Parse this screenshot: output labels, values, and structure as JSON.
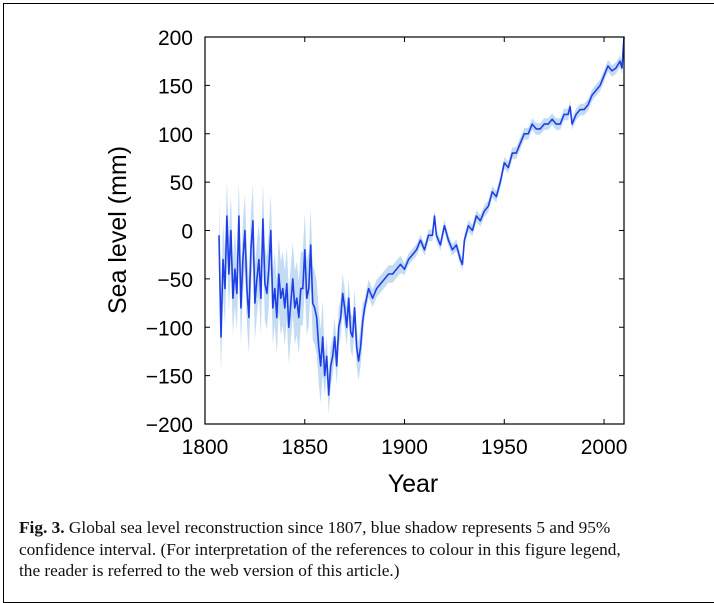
{
  "figure": {
    "caption_label": "Fig. 3.",
    "caption_line1": " Global sea level reconstruction since 1807, blue shadow represents 5 and 95%",
    "caption_line2": "confidence interval. (For interpretation of the references to colour in this figure legend,",
    "caption_line3": "the reader is referred to the web version of this article.)"
  },
  "chart_data": {
    "type": "line",
    "xlabel": "Year",
    "ylabel": "Sea level (mm)",
    "xlim": [
      1800,
      2010
    ],
    "ylim": [
      -200,
      200
    ],
    "x_ticks": [
      1800,
      1850,
      1900,
      1950,
      2000
    ],
    "y_ticks": [
      200,
      150,
      100,
      50,
      0,
      -50,
      -100,
      -150,
      -200
    ],
    "y_tick_labels": [
      "200",
      "150",
      "100",
      "50",
      "0",
      "−50",
      "−100",
      "−150",
      "−200"
    ],
    "grid": false,
    "colors": {
      "line": "#1f3fe6",
      "band": "#b9d6f2"
    },
    "series": [
      {
        "x": [
          1807,
          1808,
          1809,
          1810,
          1811,
          1812,
          1813,
          1814,
          1815,
          1816,
          1817,
          1818,
          1819,
          1820,
          1821,
          1822,
          1823,
          1824,
          1825,
          1826,
          1827,
          1828,
          1829,
          1830,
          1831,
          1832,
          1833,
          1834,
          1835,
          1836,
          1837,
          1838,
          1839,
          1840,
          1841,
          1842,
          1843,
          1844,
          1845,
          1846,
          1847,
          1848,
          1849,
          1850,
          1851,
          1852,
          1853,
          1854,
          1855,
          1856,
          1857,
          1858,
          1859,
          1860,
          1861,
          1862,
          1863,
          1864,
          1865,
          1866,
          1867,
          1868,
          1869,
          1870,
          1871,
          1872,
          1873,
          1874,
          1875,
          1876,
          1877,
          1878,
          1879,
          1880,
          1882,
          1884,
          1886,
          1888,
          1890,
          1892,
          1894,
          1896,
          1898,
          1900,
          1902,
          1904,
          1906,
          1908,
          1910,
          1912,
          1914,
          1915,
          1916,
          1918,
          1920,
          1922,
          1924,
          1926,
          1928,
          1929,
          1930,
          1932,
          1934,
          1936,
          1938,
          1940,
          1942,
          1944,
          1946,
          1948,
          1950,
          1952,
          1954,
          1956,
          1958,
          1960,
          1962,
          1964,
          1966,
          1968,
          1970,
          1972,
          1974,
          1976,
          1978,
          1980,
          1982,
          1983,
          1984,
          1986,
          1988,
          1990,
          1992,
          1994,
          1996,
          1998,
          2000,
          2002,
          2004,
          2006,
          2008,
          2009,
          2010
        ],
        "y": [
          -5,
          -110,
          -30,
          -60,
          15,
          -45,
          0,
          -70,
          -40,
          -65,
          15,
          -80,
          -30,
          0,
          -60,
          -90,
          -20,
          10,
          -75,
          -50,
          -30,
          -70,
          12,
          -55,
          -65,
          -40,
          0,
          -80,
          -60,
          -90,
          -45,
          -70,
          -60,
          -80,
          -55,
          -100,
          -75,
          -50,
          -80,
          -70,
          -90,
          -60,
          -60,
          -20,
          -70,
          -60,
          -15,
          -75,
          -80,
          -90,
          -120,
          -140,
          -110,
          -150,
          -130,
          -170,
          -140,
          -130,
          -110,
          -140,
          -100,
          -90,
          -65,
          -80,
          -100,
          -70,
          -105,
          -110,
          -80,
          -120,
          -135,
          -120,
          -95,
          -80,
          -60,
          -70,
          -60,
          -55,
          -50,
          -45,
          -45,
          -40,
          -35,
          -40,
          -30,
          -25,
          -20,
          -10,
          -20,
          -5,
          -5,
          15,
          -5,
          -15,
          5,
          -10,
          -20,
          -15,
          -30,
          -35,
          -10,
          5,
          0,
          15,
          10,
          20,
          25,
          40,
          35,
          50,
          70,
          65,
          80,
          80,
          90,
          100,
          100,
          110,
          105,
          105,
          110,
          110,
          115,
          110,
          110,
          120,
          120,
          128,
          110,
          120,
          125,
          125,
          130,
          140,
          145,
          150,
          160,
          170,
          165,
          168,
          175,
          168,
          200
        ]
      }
    ]
  }
}
